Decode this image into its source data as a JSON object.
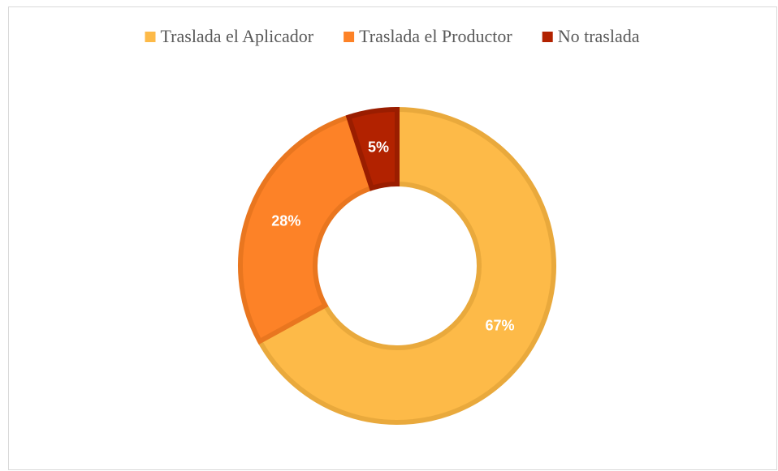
{
  "chart_data": {
    "type": "pie",
    "categories": [
      "Traslada el Aplicador",
      "Traslada el Productor",
      "No traslada"
    ],
    "values": [
      67,
      28,
      5
    ],
    "value_labels": [
      "67%",
      "28%",
      "5%"
    ],
    "colors": [
      "#FDBA48",
      "#FD8227",
      "#B22200"
    ],
    "border_colors": [
      "#E9A93C",
      "#E9761F",
      "#9A1D00"
    ],
    "donut": true,
    "legend": "top"
  }
}
